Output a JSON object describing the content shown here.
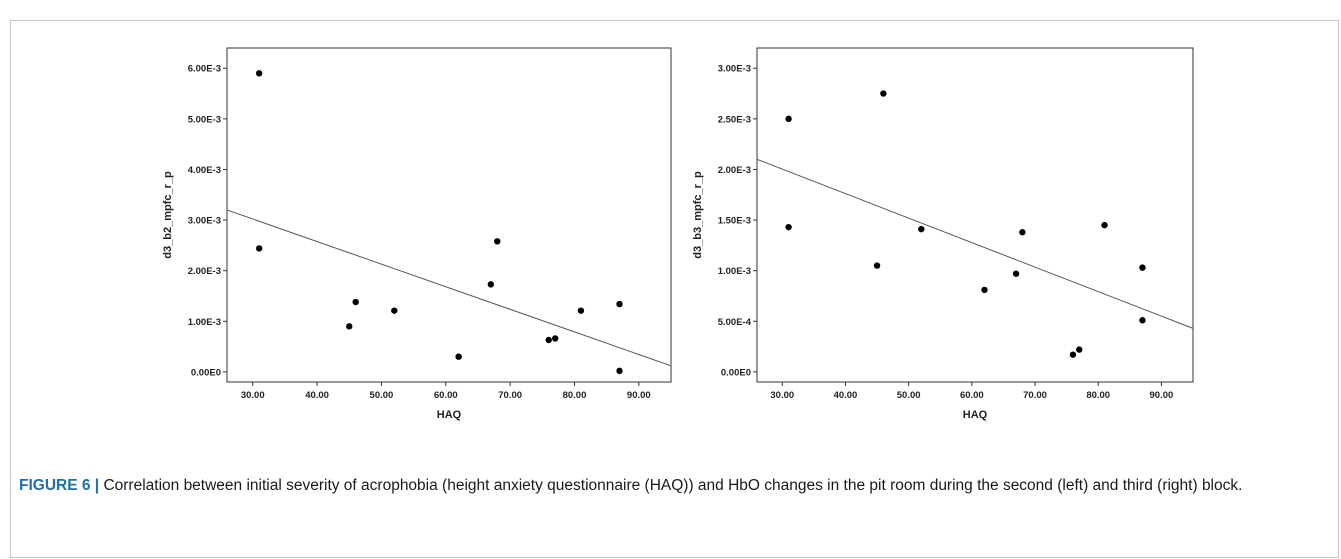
{
  "figure": {
    "label": "FIGURE 6 |",
    "caption": " Correlation between initial severity of acrophobia (height anxiety questionnaire (HAQ)) and HbO changes in the pit room during the second (left) and third (right) block."
  },
  "chart_data": [
    {
      "type": "scatter",
      "title": "",
      "xlabel": "HAQ",
      "ylabel": "d3_b2_mpfc_r_p",
      "xlim": [
        26,
        95
      ],
      "ylim": [
        -0.0002,
        0.0064
      ],
      "xticks": [
        30,
        40,
        50,
        60,
        70,
        80,
        90
      ],
      "xtick_labels": [
        "30.00",
        "40.00",
        "50.00",
        "60.00",
        "70.00",
        "80.00",
        "90.00"
      ],
      "yticks": [
        0,
        0.001,
        0.002,
        0.003,
        0.004,
        0.005,
        0.006
      ],
      "ytick_labels": [
        "0.00E0",
        "1.00E-3",
        "2.00E-3",
        "3.00E-3",
        "4.00E-3",
        "5.00E-3",
        "6.00E-3"
      ],
      "points": [
        {
          "x": 31,
          "y": 0.0059
        },
        {
          "x": 31,
          "y": 0.00244
        },
        {
          "x": 45,
          "y": 0.0009
        },
        {
          "x": 46,
          "y": 0.00138
        },
        {
          "x": 52,
          "y": 0.00121
        },
        {
          "x": 62,
          "y": 0.0003
        },
        {
          "x": 67,
          "y": 0.00173
        },
        {
          "x": 68,
          "y": 0.00258
        },
        {
          "x": 76,
          "y": 0.00063
        },
        {
          "x": 77,
          "y": 0.00066
        },
        {
          "x": 81,
          "y": 0.00121
        },
        {
          "x": 87,
          "y": 0.00134
        },
        {
          "x": 87,
          "y": 2e-05
        }
      ],
      "fit_line": {
        "x": [
          26,
          95
        ],
        "y": [
          0.0032,
          0.00012
        ]
      }
    },
    {
      "type": "scatter",
      "title": "",
      "xlabel": "HAQ",
      "ylabel": "d3_b3_mpfc_r_p",
      "xlim": [
        26,
        95
      ],
      "ylim": [
        -0.0001,
        0.0032
      ],
      "xticks": [
        30,
        40,
        50,
        60,
        70,
        80,
        90
      ],
      "xtick_labels": [
        "30.00",
        "40.00",
        "50.00",
        "60.00",
        "70.00",
        "80.00",
        "90.00"
      ],
      "yticks": [
        0,
        0.0005,
        0.001,
        0.0015,
        0.002,
        0.0025,
        0.003
      ],
      "ytick_labels": [
        "0.00E0",
        "5.00E-4",
        "1.00E-3",
        "1.50E-3",
        "2.00E-3",
        "2.50E-3",
        "3.00E-3"
      ],
      "points": [
        {
          "x": 31,
          "y": 0.0025
        },
        {
          "x": 31,
          "y": 0.00143
        },
        {
          "x": 45,
          "y": 0.00105
        },
        {
          "x": 46,
          "y": 0.00275
        },
        {
          "x": 52,
          "y": 0.00141
        },
        {
          "x": 62,
          "y": 0.00081
        },
        {
          "x": 67,
          "y": 0.00097
        },
        {
          "x": 68,
          "y": 0.00138
        },
        {
          "x": 76,
          "y": 0.00017
        },
        {
          "x": 77,
          "y": 0.00022
        },
        {
          "x": 81,
          "y": 0.00145
        },
        {
          "x": 87,
          "y": 0.00103
        },
        {
          "x": 87,
          "y": 0.00051
        }
      ],
      "fit_line": {
        "x": [
          26,
          95
        ],
        "y": [
          0.0021,
          0.00043
        ]
      }
    }
  ]
}
